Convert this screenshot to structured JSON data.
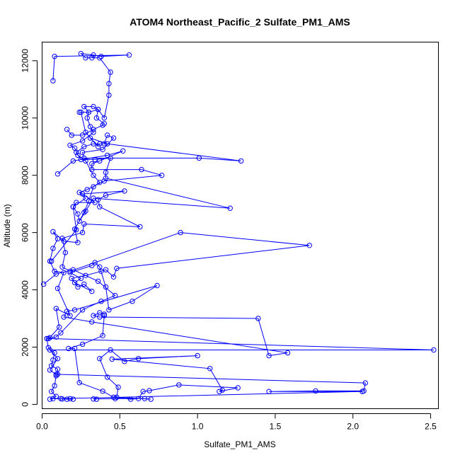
{
  "chart_data": {
    "type": "scatter",
    "title": "ATOM4 Northeast_Pacific_2 Sulfate_PM1_AMS",
    "xlabel": "Sulfate_PM1_AMS",
    "ylabel": "Altitude (m)",
    "xlim": [
      0,
      2.55
    ],
    "ylim": [
      -150,
      12650
    ],
    "xticks": [
      "0.0",
      "0.5",
      "1.0",
      "1.5",
      "2.0",
      "2.5"
    ],
    "yticks": [
      "0",
      "2000",
      "4000",
      "6000",
      "8000",
      "10000",
      "12000"
    ],
    "grid": false,
    "legend": "none",
    "colors": {
      "series": "#0000ff"
    },
    "series": [
      {
        "values": [
          [
            0.2,
            180
          ],
          [
            0.13,
            190
          ],
          [
            0.07,
            200
          ],
          [
            0.05,
            180
          ],
          [
            0.09,
            280
          ],
          [
            0.06,
            450
          ],
          [
            0.08,
            650
          ],
          [
            0.09,
            1000
          ],
          [
            0.1,
            1050
          ],
          [
            0.1,
            1230
          ],
          [
            0.06,
            1350
          ],
          [
            0.07,
            1550
          ],
          [
            0.08,
            1800
          ],
          [
            0.04,
            1980
          ],
          [
            0.03,
            2300
          ],
          [
            0.05,
            2330
          ],
          [
            0.11,
            2700
          ],
          [
            0.09,
            3350
          ],
          [
            0.18,
            3100
          ],
          [
            0.1,
            4050
          ],
          [
            0.14,
            4600
          ],
          [
            0.08,
            4650
          ],
          [
            0.05,
            5000
          ],
          [
            0.07,
            5450
          ],
          [
            0.1,
            5780
          ],
          [
            0.07,
            6030
          ],
          [
            0.14,
            5700
          ],
          [
            0.23,
            5650
          ],
          [
            0.21,
            6120
          ],
          [
            0.27,
            6700
          ],
          [
            0.3,
            7100
          ],
          [
            0.33,
            7600
          ],
          [
            0.37,
            7750
          ],
          [
            0.33,
            8000
          ],
          [
            0.28,
            8500
          ],
          [
            0.23,
            8700
          ],
          [
            0.21,
            8950
          ],
          [
            0.18,
            9050
          ],
          [
            0.26,
            9200
          ],
          [
            0.33,
            9500
          ],
          [
            0.31,
            9700
          ],
          [
            0.29,
            10000
          ],
          [
            0.3,
            10200
          ],
          [
            0.27,
            10400
          ],
          [
            0.33,
            10400
          ],
          [
            0.36,
            10300
          ],
          [
            0.4,
            10000
          ],
          [
            0.43,
            10800
          ],
          [
            0.43,
            11200
          ],
          [
            0.44,
            11600
          ],
          [
            0.37,
            12100
          ],
          [
            0.32,
            12100
          ],
          [
            0.28,
            12100
          ],
          [
            0.25,
            12250
          ],
          [
            0.33,
            12200
          ],
          [
            0.38,
            12150
          ],
          [
            0.56,
            12200
          ],
          [
            0.08,
            12150
          ],
          [
            0.07,
            11300
          ]
        ]
      },
      {
        "values": [
          [
            0.35,
            180
          ],
          [
            0.33,
            190
          ],
          [
            0.47,
            200
          ],
          [
            0.66,
            200
          ],
          [
            0.7,
            180
          ],
          [
            0.48,
            250
          ],
          [
            0.49,
            600
          ],
          [
            0.42,
            950
          ],
          [
            0.37,
            1600
          ],
          [
            0.44,
            1900
          ],
          [
            0.53,
            1500
          ],
          [
            0.62,
            1600
          ],
          [
            1.0,
            1700
          ],
          [
            0.45,
            1580
          ],
          [
            1.08,
            1250
          ],
          [
            1.16,
            500
          ],
          [
            1.14,
            450
          ],
          [
            1.26,
            580
          ],
          [
            0.88,
            680
          ],
          [
            0.69,
            480
          ],
          [
            0.65,
            450
          ],
          [
            0.62,
            200
          ],
          [
            0.57,
            180
          ],
          [
            0.46,
            250
          ],
          [
            0.39,
            460
          ],
          [
            0.24,
            760
          ],
          [
            0.21,
            1950
          ],
          [
            0.17,
            1950
          ],
          [
            0.26,
            2100
          ],
          [
            0.39,
            2400
          ],
          [
            0.4,
            3100
          ],
          [
            0.4,
            3150
          ],
          [
            0.37,
            3200
          ],
          [
            0.33,
            3100
          ],
          [
            0.37,
            3050
          ],
          [
            1.39,
            3000
          ],
          [
            1.46,
            1700
          ],
          [
            1.58,
            1800
          ],
          [
            0.32,
            2880
          ],
          [
            0.14,
            3050
          ],
          [
            0.16,
            3250
          ],
          [
            0.21,
            3300
          ],
          [
            0.74,
            4150
          ],
          [
            0.58,
            3600
          ],
          [
            0.43,
            3300
          ],
          [
            0.41,
            4100
          ],
          [
            0.37,
            4800
          ],
          [
            0.34,
            4950
          ],
          [
            0.32,
            4850
          ],
          [
            0.18,
            4600
          ],
          [
            0.25,
            4400
          ],
          [
            0.21,
            4250
          ],
          [
            0.32,
            3950
          ],
          [
            0.27,
            4200
          ],
          [
            0.23,
            4100
          ],
          [
            0.19,
            4400
          ],
          [
            0.28,
            4500
          ],
          [
            0.38,
            4650
          ],
          [
            0.41,
            4700
          ],
          [
            0.46,
            4450
          ],
          [
            0.48,
            4750
          ],
          [
            1.72,
            5550
          ],
          [
            0.89,
            6000
          ],
          [
            0.18,
            4650
          ],
          [
            0.13,
            4800
          ],
          [
            0.15,
            5300
          ],
          [
            0.13,
            5800
          ],
          [
            0.26,
            6000
          ],
          [
            0.27,
            6300
          ],
          [
            0.63,
            6200
          ],
          [
            0.37,
            6900
          ],
          [
            0.36,
            7150
          ],
          [
            0.41,
            7300
          ],
          [
            0.53,
            7450
          ],
          [
            0.26,
            7350
          ],
          [
            0.34,
            7050
          ],
          [
            0.22,
            7050
          ],
          [
            0.2,
            6900
          ],
          [
            0.23,
            6650
          ],
          [
            0.24,
            6400
          ],
          [
            0.28,
            6750
          ],
          [
            0.33,
            7200
          ],
          [
            1.21,
            6850
          ],
          [
            0.41,
            7900
          ],
          [
            0.41,
            8100
          ],
          [
            0.44,
            8600
          ],
          [
            0.34,
            8550
          ],
          [
            0.25,
            8550
          ],
          [
            0.22,
            8800
          ],
          [
            0.27,
            9000
          ],
          [
            0.33,
            9100
          ],
          [
            0.37,
            9100
          ],
          [
            0.4,
            9100
          ],
          [
            0.42,
            9400
          ],
          [
            0.46,
            9300
          ],
          [
            0.39,
            8900
          ],
          [
            0.26,
            8800
          ],
          [
            0.27,
            8600
          ],
          [
            1.01,
            8600
          ],
          [
            1.28,
            8500
          ],
          [
            0.42,
            9100
          ],
          [
            0.31,
            9300
          ],
          [
            0.36,
            9000
          ],
          [
            0.28,
            9500
          ],
          [
            0.25,
            10200
          ],
          [
            0.24,
            10200
          ],
          [
            0.3,
            10200
          ],
          [
            0.36,
            10300
          ],
          [
            0.35,
            10000
          ],
          [
            0.4,
            9800
          ],
          [
            0.39,
            9750
          ],
          [
            0.33,
            9600
          ],
          [
            0.26,
            9400
          ],
          [
            0.19,
            9400
          ],
          [
            0.16,
            9600
          ]
        ]
      },
      {
        "values": [
          [
            0.01,
            4200
          ],
          [
            0.09,
            4550
          ],
          [
            0.2,
            4700
          ],
          [
            0.36,
            4300
          ],
          [
            0.47,
            3800
          ],
          [
            0.38,
            3600
          ],
          [
            0.26,
            3300
          ],
          [
            0.12,
            2500
          ],
          [
            0.09,
            2350
          ],
          [
            0.04,
            2300
          ],
          [
            2.52,
            1900
          ],
          [
            0.05,
            1900
          ],
          [
            0.1,
            1600
          ],
          [
            0.05,
            1200
          ],
          [
            0.09,
            1050
          ],
          [
            2.08,
            750
          ],
          [
            2.07,
            470
          ],
          [
            1.76,
            470
          ],
          [
            1.46,
            450
          ],
          [
            2.06,
            450
          ],
          [
            0.12,
            200
          ],
          [
            0.16,
            180
          ],
          [
            0.18,
            200
          ]
        ]
      },
      {
        "values": [
          [
            0.1,
            8050
          ],
          [
            0.2,
            8500
          ],
          [
            0.42,
            8700
          ],
          [
            0.52,
            8850
          ],
          [
            0.37,
            8500
          ],
          [
            0.32,
            8400
          ],
          [
            0.32,
            8200
          ],
          [
            0.64,
            8200
          ],
          [
            0.77,
            8000
          ],
          [
            0.4,
            7800
          ],
          [
            0.29,
            7500
          ],
          [
            0.24,
            7400
          ],
          [
            0.28,
            7200
          ],
          [
            0.2,
            6900
          ],
          [
            0.22,
            6100
          ],
          [
            0.06,
            5000
          ]
        ]
      }
    ]
  }
}
